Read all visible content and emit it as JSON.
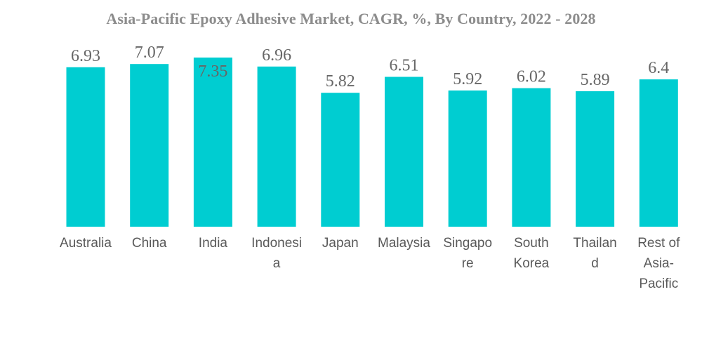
{
  "chart_data": {
    "type": "bar",
    "title": "Asia-Pacific Epoxy Adhesive Market, CAGR, %, By Country, 2022 - 2028",
    "categories": [
      "Australia",
      "China",
      "India",
      "Indonesia",
      "Japan",
      "Malaysia",
      "Singapore",
      "South Korea",
      "Thailand",
      "Rest of Asia-Pacific"
    ],
    "category_label_lines": [
      [
        "Australia"
      ],
      [
        "China"
      ],
      [
        "India"
      ],
      [
        "Indonesi",
        "a"
      ],
      [
        "Japan"
      ],
      [
        "Malaysia"
      ],
      [
        "Singapo",
        "re"
      ],
      [
        "South",
        "Korea"
      ],
      [
        "Thailan",
        "d"
      ],
      [
        "Rest of",
        "Asia-",
        "Pacific"
      ]
    ],
    "values": [
      6.93,
      7.07,
      7.35,
      6.96,
      5.82,
      6.51,
      5.92,
      6.02,
      5.89,
      6.4
    ],
    "value_labels": [
      "6.93",
      "7.07",
      "7.35",
      "6.96",
      "5.82",
      "6.51",
      "5.92",
      "6.02",
      "5.89",
      "6.4"
    ],
    "xlabel": "",
    "ylabel": "",
    "ylim": [
      0,
      7.35
    ],
    "grid": false,
    "bar_color": "#00cdd1"
  }
}
